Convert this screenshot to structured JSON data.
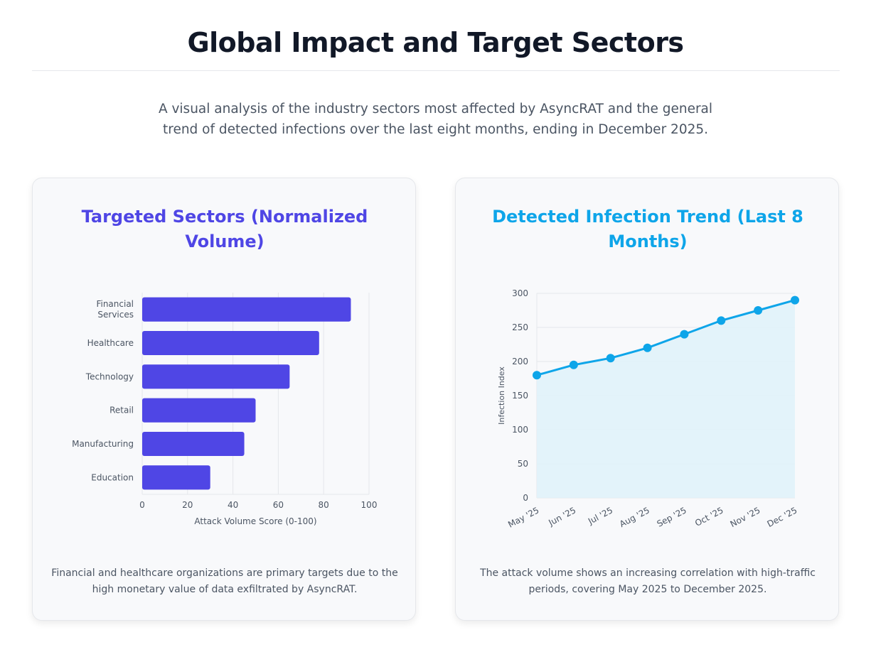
{
  "header": {
    "title": "Global Impact and Target Sectors",
    "intro": "A visual analysis of the industry sectors most affected by AsyncRAT and the general trend of detected infections over the last eight months, ending in December 2025."
  },
  "cards": [
    {
      "title": "Targeted Sectors (Normalized Volume)",
      "caption": "Financial and healthcare organizations are primary targets due to the high monetary value of data exfiltrated by AsyncRAT."
    },
    {
      "title": "Detected Infection Trend (Last 8 Months)",
      "caption": "The attack volume shows an increasing correlation with high-traffic periods, covering May 2025 to December 2025."
    }
  ],
  "colors": {
    "bar": "#4f46e5",
    "line": "#0ea5e9",
    "area": "#e0f2fa"
  },
  "chart_data": [
    {
      "type": "bar",
      "orientation": "horizontal",
      "title": "Targeted Sectors (Normalized Volume)",
      "categories": [
        [
          "Financial",
          "Services"
        ],
        [
          "Healthcare"
        ],
        [
          "Technology"
        ],
        [
          "Retail"
        ],
        [
          "Manufacturing"
        ],
        [
          "Education"
        ]
      ],
      "values": [
        92,
        78,
        65,
        50,
        45,
        30
      ],
      "xlabel": "Attack Volume Score (0-100)",
      "ylabel": "",
      "xlim": [
        0,
        100
      ],
      "xticks": [
        0,
        20,
        40,
        60,
        80,
        100
      ],
      "grid": true,
      "legend": "none"
    },
    {
      "type": "area",
      "title": "Detected Infection Trend (Last 8 Months)",
      "x": [
        "May '25",
        "Jun '25",
        "Jul '25",
        "Aug '25",
        "Sep '25",
        "Oct '25",
        "Nov '25",
        "Dec '25"
      ],
      "series": [
        {
          "name": "Infection Index",
          "values": [
            180,
            195,
            205,
            220,
            240,
            260,
            275,
            290
          ]
        }
      ],
      "xlabel": "",
      "ylabel": "Infection Index",
      "ylim": [
        0,
        300
      ],
      "yticks": [
        0,
        50,
        100,
        150,
        200,
        250,
        300
      ],
      "grid": true,
      "legend": "none"
    }
  ]
}
